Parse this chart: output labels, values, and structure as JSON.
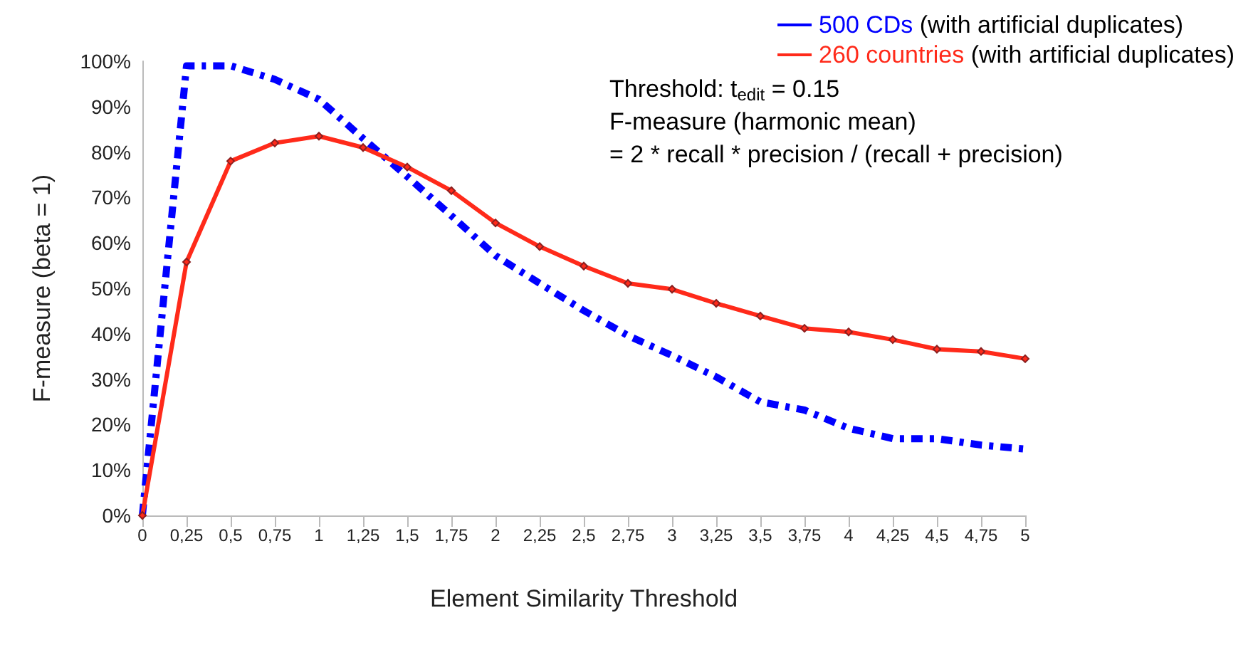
{
  "chart_data": {
    "type": "line",
    "xlabel": "Element Similarity Threshold",
    "ylabel": "F-measure (beta = 1)",
    "x": [
      0,
      0.25,
      0.5,
      0.75,
      1,
      1.25,
      1.5,
      1.75,
      2,
      2.25,
      2.5,
      2.75,
      3,
      3.25,
      3.5,
      3.75,
      4,
      4.25,
      4.5,
      4.75,
      5
    ],
    "series": [
      {
        "name": "500 CDs (with artificial duplicates)",
        "color": "#0000ff",
        "line_style": "dashed",
        "marker": "none",
        "values": [
          0,
          99,
          99,
          96,
          91.6,
          83,
          74.6,
          66,
          57.2,
          51.1,
          45.1,
          39.6,
          35.2,
          30.5,
          25,
          23.2,
          19.2,
          16.9,
          16.9,
          15.5,
          14.6
        ]
      },
      {
        "name": "260 countries (with artificial duplicates)",
        "color": "#ff2a1a",
        "line_style": "solid",
        "marker": "diamond",
        "values": [
          0,
          55.8,
          78,
          82,
          83.5,
          81,
          76.7,
          71.5,
          64.4,
          59.2,
          54.9,
          51.1,
          49.8,
          46.7,
          43.9,
          41.2,
          40.4,
          38.7,
          36.6,
          36.1,
          34.5
        ]
      }
    ],
    "annotations": [
      "Threshold: t$_{edit}$ = 0.15",
      "F-measure (harmonic mean)",
      "= 2 * recall * precision / (recall + precision)"
    ],
    "xlim": [
      0,
      5
    ],
    "xticks": [
      0,
      {
        "value": 0.25,
        "label": "0,25"
      },
      {
        "value": 0.5,
        "label": "0,5"
      },
      {
        "value": 0.75,
        "label": "0,75"
      },
      1,
      {
        "value": 1.25,
        "label": "1,25"
      },
      {
        "value": 1.5,
        "label": "1,5"
      },
      {
        "value": 1.75,
        "label": "1,75"
      },
      2,
      {
        "value": 2.25,
        "label": "2,25"
      },
      {
        "value": 2.5,
        "label": "2,5"
      },
      {
        "value": 2.75,
        "label": "2,75"
      },
      3,
      {
        "value": 3.25,
        "label": "3,25"
      },
      {
        "value": 3.5,
        "label": "3,5"
      },
      {
        "value": 3.75,
        "label": "3,75"
      },
      4,
      {
        "value": 4.25,
        "label": "4,25"
      },
      {
        "value": 4.5,
        "label": "4,5"
      },
      {
        "value": 4.75,
        "label": "4,75"
      },
      5
    ],
    "ylim": [
      0,
      100
    ],
    "yticks": [
      {
        "value": 0,
        "label": "0%"
      },
      {
        "value": 10,
        "label": "10%"
      },
      {
        "value": 20,
        "label": "20%"
      },
      {
        "value": 30,
        "label": "30%"
      },
      {
        "value": 40,
        "label": "40%"
      },
      {
        "value": 50,
        "label": "50%"
      },
      {
        "value": 60,
        "label": "60%"
      },
      {
        "value": 70,
        "label": "70%"
      },
      {
        "value": 80,
        "label": "80%"
      },
      {
        "value": 90,
        "label": "90%"
      },
      {
        "value": 100,
        "label": "100%"
      }
    ],
    "grid": false,
    "legend": "top right"
  }
}
